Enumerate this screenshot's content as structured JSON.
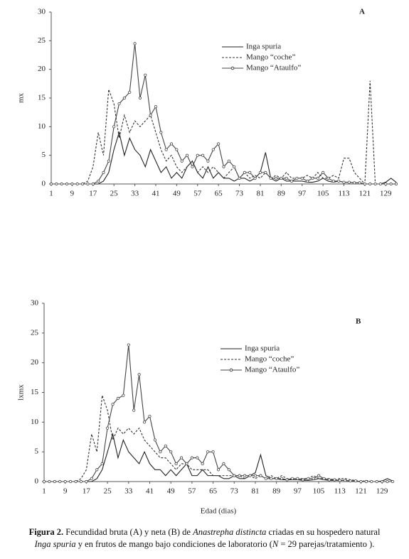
{
  "chart_data": [
    {
      "type": "line",
      "title": "A",
      "y_label": "mx",
      "legend_position": "top-center",
      "x": [
        1,
        3,
        5,
        7,
        9,
        11,
        13,
        15,
        17,
        19,
        21,
        23,
        25,
        27,
        29,
        31,
        33,
        35,
        37,
        39,
        41,
        43,
        45,
        47,
        49,
        51,
        53,
        55,
        57,
        59,
        61,
        63,
        65,
        67,
        69,
        71,
        73,
        75,
        77,
        79,
        81,
        83,
        85,
        87,
        89,
        91,
        93,
        95,
        97,
        99,
        101,
        103,
        105,
        107,
        109,
        111,
        113,
        115,
        117,
        119,
        121,
        123,
        125,
        127,
        129,
        131,
        133
      ],
      "xlim": [
        1,
        133
      ],
      "xticks": [
        1,
        9,
        17,
        25,
        33,
        41,
        49,
        57,
        65,
        73,
        81,
        89,
        97,
        105,
        113,
        121,
        129
      ],
      "ylim": [
        0,
        30
      ],
      "yticks": [
        0,
        5,
        10,
        15,
        20,
        25,
        30
      ],
      "series": [
        {
          "name": "Inga spuria",
          "color": "#222222",
          "line_style": "solid",
          "values": [
            0,
            0,
            0,
            0,
            0,
            0,
            0,
            0,
            0,
            0,
            0.5,
            2,
            6,
            9,
            5,
            8,
            6,
            5,
            3,
            6,
            4,
            2,
            3,
            1,
            2,
            1,
            3,
            4,
            2,
            1,
            3,
            1,
            2,
            1,
            1,
            0.5,
            1,
            1,
            0.5,
            1,
            2,
            5.5,
            1,
            0.5,
            1,
            0.5,
            0.5,
            0.5,
            0.5,
            0.3,
            0.3,
            0.5,
            1,
            0.5,
            0.3,
            0.5,
            0.3,
            0.3,
            0.2,
            0.2,
            0,
            0,
            0,
            0,
            0.3,
            1,
            0.3
          ]
        },
        {
          "name": "Mango “coche”",
          "color": "#333333",
          "line_style": "dashed",
          "values": [
            0,
            0,
            0,
            0,
            0,
            0,
            0,
            0.5,
            3,
            9,
            5,
            16.5,
            14,
            8,
            12,
            9,
            11,
            10,
            11,
            12,
            9,
            6,
            4,
            5,
            3,
            2,
            3,
            4,
            2,
            3,
            2,
            3,
            2,
            1,
            2,
            3,
            1,
            2,
            1,
            1.5,
            1,
            2,
            1,
            1.5,
            1,
            2,
            1,
            1,
            1,
            1.5,
            1,
            2,
            1,
            1,
            1.5,
            1,
            4.5,
            4.5,
            2,
            1,
            0,
            18,
            0,
            0,
            0,
            0,
            0
          ]
        },
        {
          "name": "Mango “Ataulfo”",
          "color": "#444444",
          "line_style": "solid",
          "marker": "circle",
          "values": [
            0,
            0,
            0,
            0,
            0,
            0,
            0,
            0,
            0,
            0.5,
            2,
            4,
            10,
            14,
            15,
            16,
            24.5,
            15,
            19,
            12,
            13.5,
            9,
            6,
            7,
            6,
            4,
            5,
            3,
            5,
            5,
            4,
            6,
            7,
            3,
            4,
            3,
            1,
            2,
            2,
            1,
            2,
            2,
            1,
            1,
            1,
            1,
            0.5,
            1,
            1,
            0.5,
            1,
            1,
            2,
            1,
            0.5,
            0.5,
            0.3,
            0.3,
            0.2,
            0.2,
            0,
            0,
            0,
            0,
            0,
            0,
            0
          ]
        }
      ]
    },
    {
      "type": "line",
      "title": "B",
      "y_label": "lxmx",
      "x_label": "Edad (dias)",
      "legend_position": "top-center",
      "x": [
        1,
        3,
        5,
        7,
        9,
        11,
        13,
        15,
        17,
        19,
        21,
        23,
        25,
        27,
        29,
        31,
        33,
        35,
        37,
        39,
        41,
        43,
        45,
        47,
        49,
        51,
        53,
        55,
        57,
        59,
        61,
        63,
        65,
        67,
        69,
        71,
        73,
        75,
        77,
        79,
        81,
        83,
        85,
        87,
        89,
        91,
        93,
        95,
        97,
        99,
        101,
        103,
        105,
        107,
        109,
        111,
        113,
        115,
        117,
        119,
        121,
        123,
        125,
        127,
        129,
        131,
        133
      ],
      "xlim": [
        1,
        133
      ],
      "xticks": [
        1,
        9,
        17,
        25,
        33,
        41,
        49,
        57,
        65,
        73,
        81,
        89,
        97,
        105,
        113,
        121,
        129
      ],
      "ylim": [
        0,
        30
      ],
      "yticks": [
        0,
        5,
        10,
        15,
        20,
        25,
        30
      ],
      "series": [
        {
          "name": "Inga spuria",
          "color": "#222222",
          "line_style": "solid",
          "values": [
            0,
            0,
            0,
            0,
            0,
            0,
            0,
            0,
            0,
            0,
            0.5,
            2,
            5,
            8,
            4,
            7,
            5,
            4,
            3,
            5,
            3,
            2,
            2,
            1,
            2,
            1,
            2,
            3,
            1,
            1,
            2,
            1,
            1,
            1,
            0.5,
            0.5,
            1,
            0.5,
            0.5,
            1,
            1.5,
            4.5,
            1,
            0.5,
            0.5,
            0.3,
            0.3,
            0.3,
            0.3,
            0.2,
            0.2,
            0.3,
            0.5,
            0.3,
            0.2,
            0.2,
            0.2,
            0.2,
            0.1,
            0.1,
            0,
            0,
            0,
            0,
            0.1,
            0.5,
            0.1
          ]
        },
        {
          "name": "Mango “coche”",
          "color": "#333333",
          "line_style": "dashed",
          "values": [
            0,
            0,
            0,
            0,
            0,
            0,
            0,
            0.5,
            2,
            8,
            5,
            14.5,
            12,
            7,
            9,
            8,
            9,
            8,
            9,
            7,
            6,
            5,
            4,
            4,
            3,
            2,
            3,
            3,
            2,
            2,
            2,
            2,
            1,
            1,
            1,
            1,
            1,
            1,
            0.5,
            1,
            0.5,
            1,
            0.5,
            1,
            0.5,
            1,
            0.5,
            0.5,
            0.5,
            0.5,
            0.5,
            1,
            0.5,
            0.5,
            0.5,
            0.3,
            0.5,
            0.5,
            0.3,
            0.2,
            0,
            0.2,
            0,
            0,
            0,
            0,
            0
          ]
        },
        {
          "name": "Mango “Ataulfo”",
          "color": "#444444",
          "line_style": "solid",
          "marker": "circle",
          "values": [
            0,
            0,
            0,
            0,
            0,
            0,
            0,
            0,
            0,
            0.5,
            2,
            3,
            9,
            13,
            14,
            14.5,
            23,
            12,
            18,
            10,
            11,
            7,
            5,
            6,
            5,
            3,
            4,
            3,
            4,
            4,
            3,
            5,
            5,
            2,
            3,
            2,
            1,
            1,
            1,
            1,
            1,
            1,
            0.5,
            0.5,
            0.5,
            0.5,
            0.3,
            0.5,
            0.5,
            0.3,
            0.5,
            0.5,
            1,
            0.5,
            0.3,
            0.3,
            0.2,
            0.2,
            0.1,
            0.1,
            0,
            0,
            0,
            0,
            0,
            0,
            0
          ]
        }
      ]
    }
  ],
  "caption": {
    "lines": [
      [
        {
          "text": "Figura 2.",
          "style": "bold"
        },
        {
          "text": " Fecundidad bruta (A) y neta (B) de ",
          "style": "normal"
        },
        {
          "text": "Anastrepha distincta",
          "style": "italic"
        },
        {
          "text": " criadas en su hospedero natural",
          "style": "normal"
        }
      ],
      [
        {
          "text": "Inga spuria",
          "style": "italic"
        },
        {
          "text": " y en frutos de mango bajo condiciones de laboratorio (",
          "style": "normal"
        },
        {
          "text": "N",
          "style": "italic"
        },
        {
          "text": " = 29 parejas/tratamiento ).",
          "style": "normal"
        }
      ]
    ]
  }
}
